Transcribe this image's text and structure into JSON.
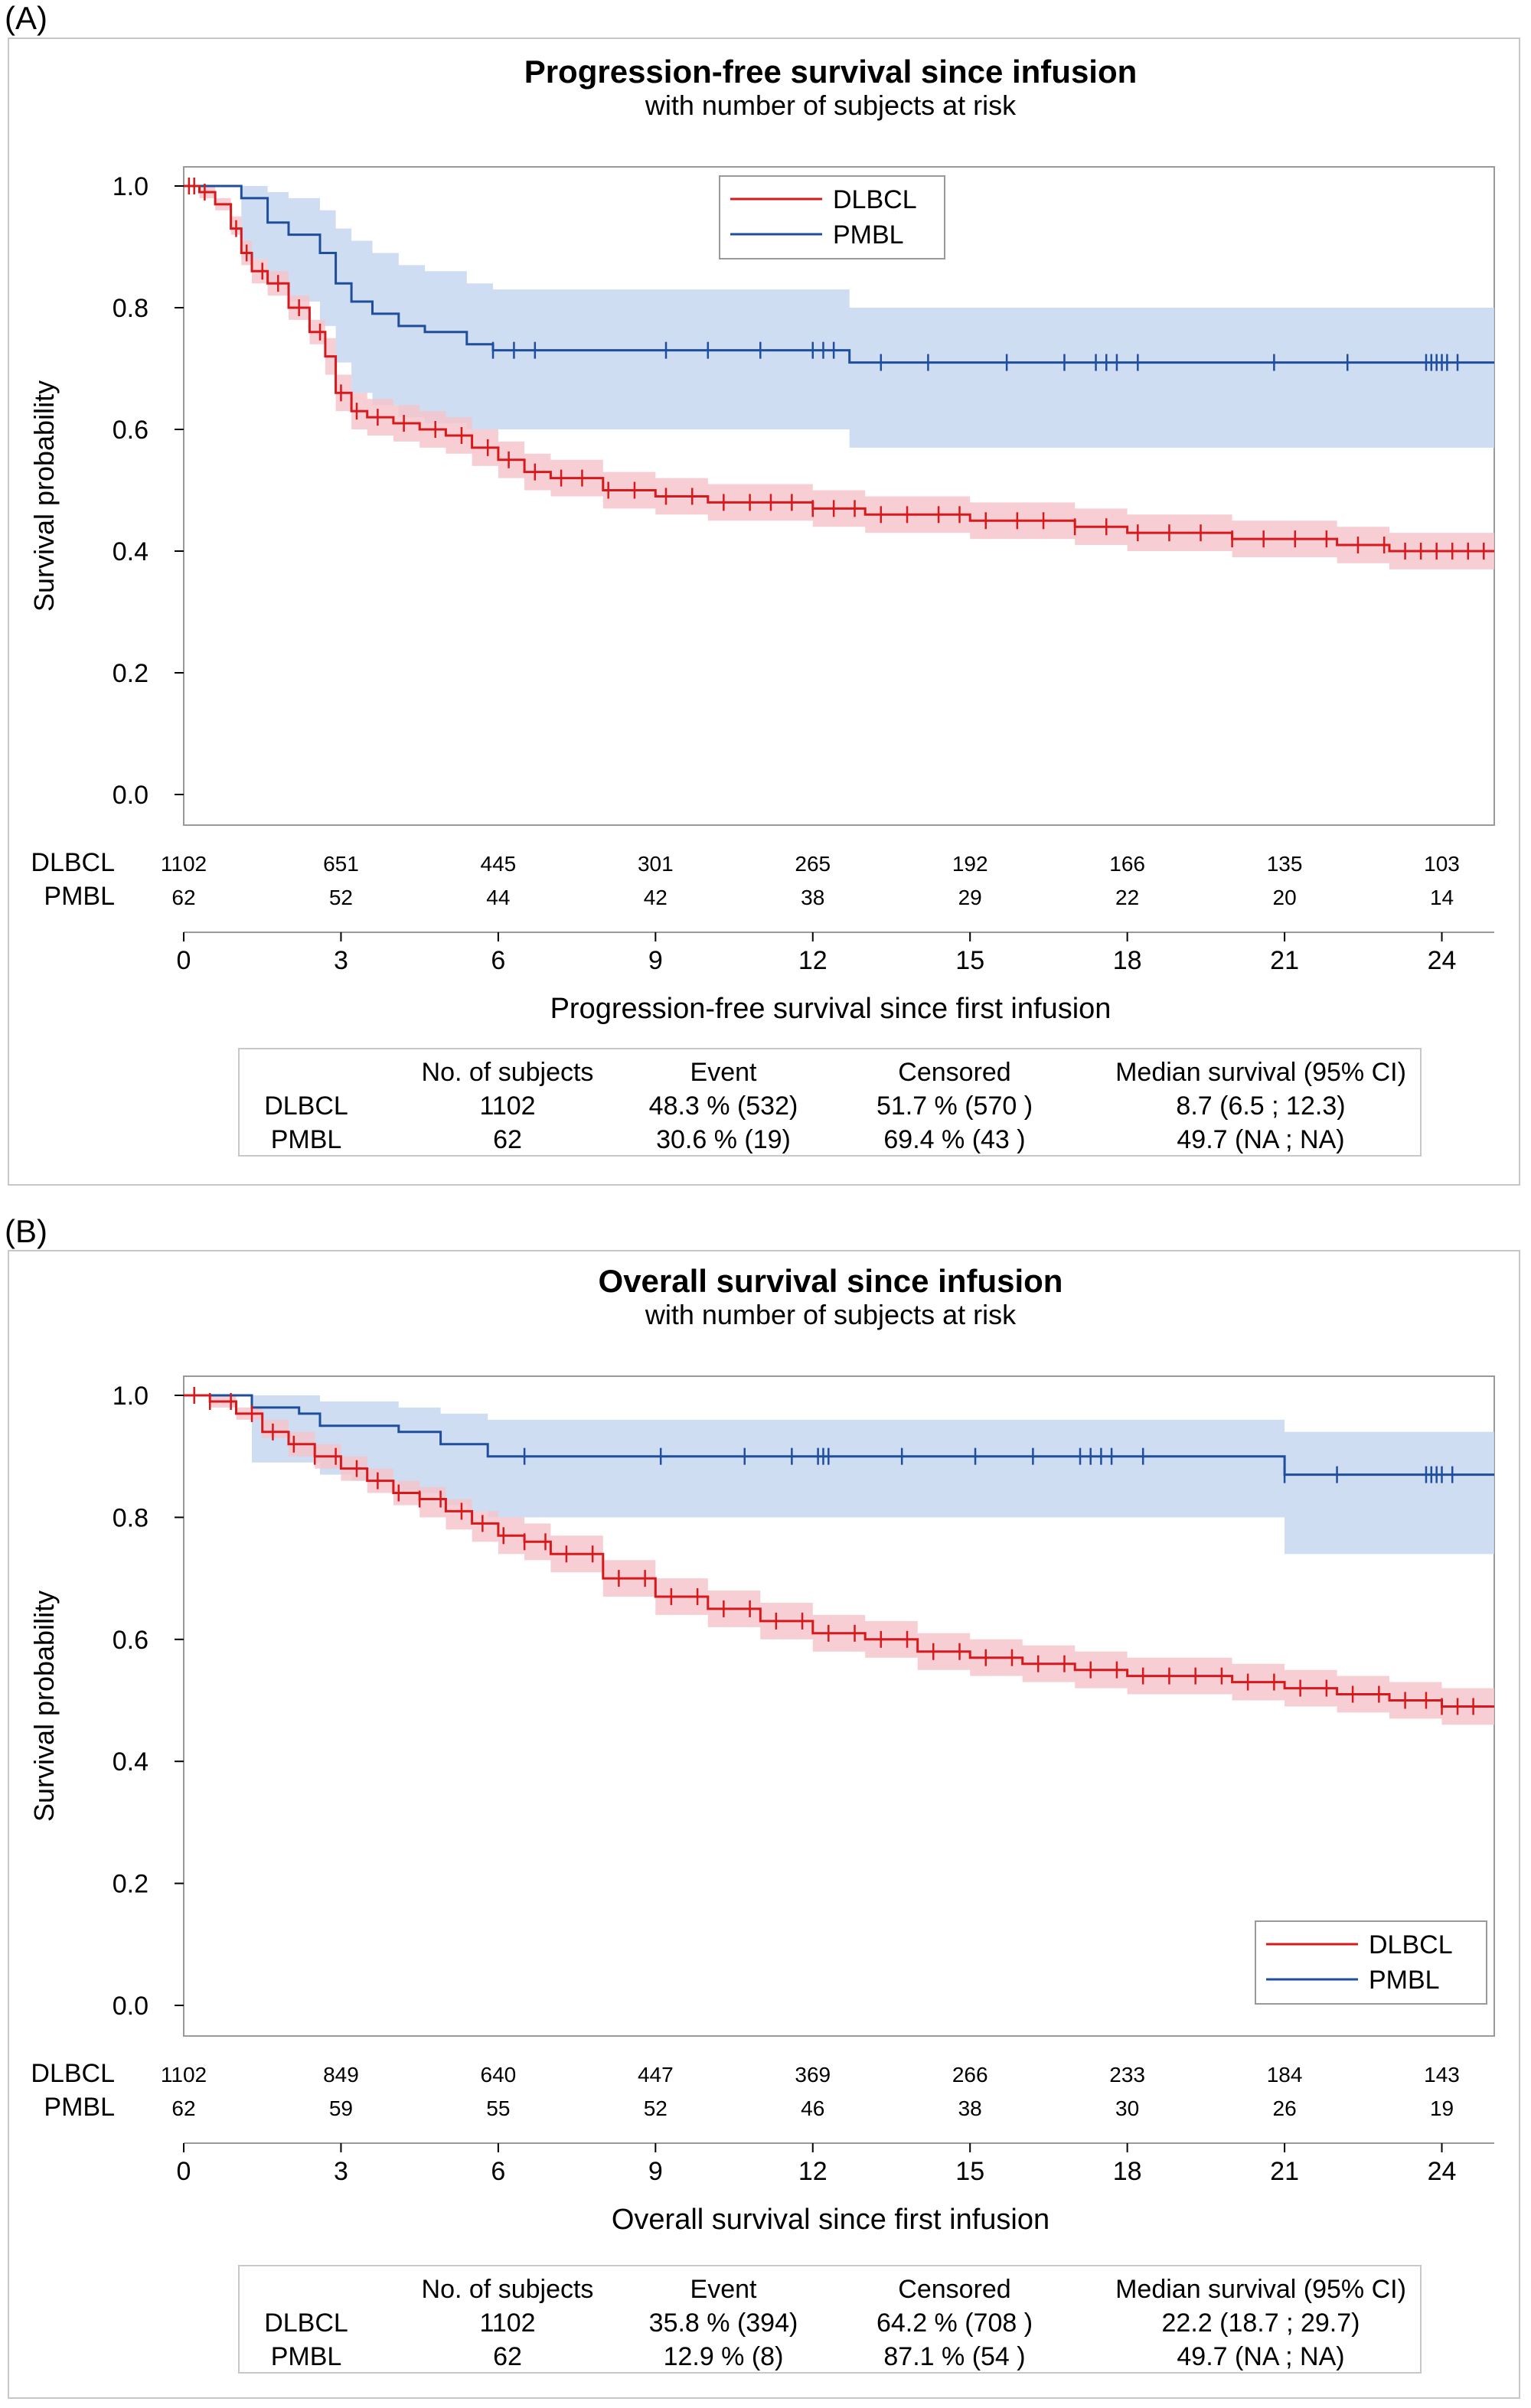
{
  "panels": [
    {
      "label": "(A)",
      "title": "Progression-free survival since infusion",
      "subtitle": "with number of subjects at risk",
      "ylabel": "Survival probability",
      "xlabel": "Progression-free survival since first infusion",
      "legend": [
        "DLBCL",
        "PMBL"
      ],
      "risk_table": {
        "rows": [
          {
            "name": "DLBCL",
            "values": [
              "1102",
              "651",
              "445",
              "301",
              "265",
              "192",
              "166",
              "135",
              "103"
            ]
          },
          {
            "name": "PMBL",
            "values": [
              "62",
              "52",
              "44",
              "42",
              "38",
              "29",
              "22",
              "20",
              "14"
            ]
          }
        ]
      },
      "summary": {
        "headers": [
          "No. of subjects",
          "Event",
          "Censored",
          "Median survival (95% CI)"
        ],
        "rows": [
          {
            "name": "DLBCL",
            "cells": [
              "1102",
              "48.3 % (532)",
              "51.7 % (570 )",
              "8.7 (6.5 ; 12.3)"
            ]
          },
          {
            "name": "PMBL",
            "cells": [
              "62",
              "30.6 % (19)",
              "69.4 % (43 )",
              "49.7 (NA ; NA)"
            ]
          }
        ]
      }
    },
    {
      "label": "(B)",
      "title": "Overall survival since infusion",
      "subtitle": "with number of subjects at risk",
      "ylabel": "Survival probability",
      "xlabel": "Overall survival since first infusion",
      "legend": [
        "DLBCL",
        "PMBL"
      ],
      "risk_table": {
        "rows": [
          {
            "name": "DLBCL",
            "values": [
              "1102",
              "849",
              "640",
              "447",
              "369",
              "266",
              "233",
              "184",
              "143"
            ]
          },
          {
            "name": "PMBL",
            "values": [
              "62",
              "59",
              "55",
              "52",
              "46",
              "38",
              "30",
              "26",
              "19"
            ]
          }
        ]
      },
      "summary": {
        "headers": [
          "No. of subjects",
          "Event",
          "Censored",
          "Median survival (95% CI)"
        ],
        "rows": [
          {
            "name": "DLBCL",
            "cells": [
              "1102",
              "35.8 % (394)",
              "64.2 % (708 )",
              "22.2 (18.7 ; 29.7)"
            ]
          },
          {
            "name": "PMBL",
            "cells": [
              "62",
              "12.9 % (8)",
              "87.1 % (54 )",
              "49.7 (NA ; NA)"
            ]
          }
        ]
      }
    }
  ],
  "colors": {
    "dlbcl_line": "#d7191c",
    "dlbcl_band": "#f4c6cc",
    "pmbl_line": "#1f4e9c",
    "pmbl_band": "#c5d7ef",
    "frame": "#9a9a9a"
  },
  "chart_data": [
    {
      "type": "line",
      "title": "Progression-free survival since infusion",
      "subtitle": "with number of subjects at risk",
      "xlabel": "Progression-free survival since first infusion",
      "ylabel": "Survival probability",
      "xlim": [
        0,
        25
      ],
      "ylim": [
        0,
        1
      ],
      "xticks": [
        0,
        3,
        6,
        9,
        12,
        15,
        18,
        21,
        24
      ],
      "yticks": [
        0.0,
        0.2,
        0.4,
        0.6,
        0.8,
        1.0
      ],
      "legend_position": "top-center",
      "series": [
        {
          "name": "DLBCL",
          "x": [
            0,
            0.3,
            0.6,
            0.9,
            1.1,
            1.3,
            1.6,
            2.0,
            2.4,
            2.7,
            2.9,
            3.2,
            3.5,
            4,
            4.5,
            5,
            5.5,
            6,
            6.5,
            7,
            8,
            9,
            10,
            11,
            12,
            13,
            14,
            15,
            16,
            17,
            18,
            19,
            20,
            21,
            22,
            23,
            24,
            25
          ],
          "y": [
            1.0,
            0.99,
            0.97,
            0.93,
            0.89,
            0.86,
            0.84,
            0.8,
            0.76,
            0.72,
            0.66,
            0.63,
            0.62,
            0.61,
            0.6,
            0.59,
            0.57,
            0.55,
            0.53,
            0.52,
            0.5,
            0.49,
            0.48,
            0.48,
            0.47,
            0.46,
            0.46,
            0.45,
            0.45,
            0.44,
            0.43,
            0.43,
            0.42,
            0.42,
            0.41,
            0.4,
            0.4,
            0.4
          ],
          "ci_lower": [
            1.0,
            0.98,
            0.96,
            0.92,
            0.87,
            0.84,
            0.82,
            0.78,
            0.74,
            0.69,
            0.63,
            0.6,
            0.59,
            0.58,
            0.57,
            0.56,
            0.54,
            0.52,
            0.5,
            0.49,
            0.47,
            0.46,
            0.45,
            0.45,
            0.44,
            0.43,
            0.43,
            0.42,
            0.42,
            0.41,
            0.4,
            0.4,
            0.39,
            0.39,
            0.38,
            0.37,
            0.37,
            0.37
          ],
          "ci_upper": [
            1.0,
            1.0,
            0.98,
            0.95,
            0.91,
            0.88,
            0.86,
            0.82,
            0.78,
            0.75,
            0.69,
            0.66,
            0.65,
            0.64,
            0.63,
            0.62,
            0.6,
            0.58,
            0.56,
            0.55,
            0.53,
            0.52,
            0.51,
            0.51,
            0.5,
            0.49,
            0.49,
            0.48,
            0.48,
            0.47,
            0.46,
            0.46,
            0.45,
            0.45,
            0.44,
            0.43,
            0.43,
            0.43
          ],
          "censor_x": [
            0.1,
            0.2,
            0.4,
            1.0,
            1.2,
            1.5,
            1.8,
            2.2,
            2.6,
            3.0,
            3.3,
            3.7,
            4.2,
            4.8,
            5.3,
            5.8,
            6.2,
            6.7,
            7.2,
            7.6,
            8.1,
            8.6,
            9.2,
            9.7,
            10.3,
            10.8,
            11.2,
            11.6,
            12.0,
            12.4,
            12.8,
            13.3,
            13.8,
            14.4,
            14.8,
            15.3,
            15.9,
            16.4,
            17.0,
            17.6,
            18.2,
            18.8,
            19.4,
            20.0,
            20.6,
            21.2,
            21.8,
            22.4,
            22.9,
            23.3,
            23.6,
            23.9,
            24.2,
            24.5,
            24.8
          ]
        },
        {
          "name": "PMBL",
          "x": [
            0,
            0.9,
            1.1,
            1.6,
            2.0,
            2.6,
            2.9,
            3.2,
            3.6,
            4.1,
            4.6,
            5.4,
            5.9,
            6.5,
            12.5,
            12.7,
            25
          ],
          "y": [
            1.0,
            1.0,
            0.98,
            0.94,
            0.92,
            0.89,
            0.84,
            0.81,
            0.79,
            0.77,
            0.76,
            0.74,
            0.73,
            0.73,
            0.73,
            0.71,
            0.71
          ],
          "ci_lower": [
            1.0,
            1.0,
            0.88,
            0.84,
            0.81,
            0.77,
            0.71,
            0.66,
            0.64,
            0.62,
            0.61,
            0.6,
            0.6,
            0.6,
            0.6,
            0.57,
            0.57
          ],
          "ci_upper": [
            1.0,
            1.0,
            1.0,
            0.99,
            0.98,
            0.96,
            0.93,
            0.91,
            0.89,
            0.87,
            0.86,
            0.84,
            0.83,
            0.83,
            0.83,
            0.8,
            0.8
          ],
          "censor_x": [
            5.9,
            6.3,
            6.7,
            9.2,
            10.0,
            11.0,
            12.0,
            12.2,
            12.4,
            13.3,
            14.2,
            15.7,
            16.8,
            17.4,
            17.6,
            17.8,
            18.2,
            20.8,
            22.2,
            23.7,
            23.8,
            23.9,
            24.0,
            24.1,
            24.3
          ]
        }
      ]
    },
    {
      "type": "line",
      "title": "Overall survival since infusion",
      "subtitle": "with number of subjects at risk",
      "xlabel": "Overall survival since first infusion",
      "ylabel": "Survival probability",
      "xlim": [
        0,
        25
      ],
      "ylim": [
        0,
        1
      ],
      "xticks": [
        0,
        3,
        6,
        9,
        12,
        15,
        18,
        21,
        24
      ],
      "yticks": [
        0.0,
        0.2,
        0.4,
        0.6,
        0.8,
        1.0
      ],
      "legend_position": "bottom-right",
      "series": [
        {
          "name": "DLBCL",
          "x": [
            0,
            0.5,
            1,
            1.5,
            2,
            2.5,
            3,
            3.5,
            4,
            4.5,
            5,
            5.5,
            6,
            6.5,
            7,
            8,
            9,
            10,
            11,
            12,
            13,
            14,
            15,
            16,
            17,
            18,
            19,
            20,
            21,
            22,
            23,
            24,
            25
          ],
          "y": [
            1.0,
            0.99,
            0.97,
            0.94,
            0.92,
            0.9,
            0.88,
            0.86,
            0.84,
            0.83,
            0.81,
            0.79,
            0.77,
            0.76,
            0.74,
            0.7,
            0.67,
            0.65,
            0.63,
            0.61,
            0.6,
            0.58,
            0.57,
            0.56,
            0.55,
            0.54,
            0.54,
            0.53,
            0.52,
            0.51,
            0.5,
            0.49,
            0.49
          ],
          "ci_lower": [
            1.0,
            0.98,
            0.96,
            0.93,
            0.9,
            0.88,
            0.86,
            0.84,
            0.82,
            0.8,
            0.78,
            0.76,
            0.74,
            0.73,
            0.71,
            0.67,
            0.64,
            0.62,
            0.6,
            0.58,
            0.57,
            0.55,
            0.54,
            0.53,
            0.52,
            0.51,
            0.51,
            0.5,
            0.49,
            0.48,
            0.47,
            0.46,
            0.46
          ],
          "ci_upper": [
            1.0,
            1.0,
            0.98,
            0.96,
            0.94,
            0.92,
            0.9,
            0.88,
            0.86,
            0.85,
            0.83,
            0.81,
            0.8,
            0.79,
            0.77,
            0.73,
            0.7,
            0.68,
            0.66,
            0.64,
            0.63,
            0.61,
            0.6,
            0.59,
            0.58,
            0.57,
            0.57,
            0.56,
            0.55,
            0.54,
            0.53,
            0.52,
            0.52
          ],
          "censor_x": [
            0.2,
            0.5,
            0.9,
            1.3,
            1.7,
            2.1,
            2.5,
            2.9,
            3.3,
            3.7,
            4.1,
            4.5,
            4.9,
            5.3,
            5.7,
            6.1,
            6.5,
            6.9,
            7.3,
            7.8,
            8.3,
            8.8,
            9.3,
            9.8,
            10.3,
            10.8,
            11.3,
            11.8,
            12.3,
            12.8,
            13.3,
            13.8,
            14.3,
            14.8,
            15.3,
            15.8,
            16.3,
            16.8,
            17.3,
            17.8,
            18.3,
            18.8,
            19.3,
            19.8,
            20.3,
            20.8,
            21.3,
            21.8,
            22.3,
            22.8,
            23.3,
            23.7,
            24.0,
            24.3,
            24.6
          ]
        },
        {
          "name": "PMBL",
          "x": [
            0,
            1.1,
            1.3,
            2.2,
            2.6,
            3.2,
            4.1,
            4.9,
            5.4,
            5.8,
            6.1,
            20.8,
            21.0,
            25
          ],
          "y": [
            1.0,
            1.0,
            0.98,
            0.97,
            0.95,
            0.95,
            0.94,
            0.92,
            0.92,
            0.9,
            0.9,
            0.9,
            0.87,
            0.87
          ],
          "ci_lower": [
            1.0,
            1.0,
            0.89,
            0.89,
            0.87,
            0.86,
            0.84,
            0.82,
            0.81,
            0.8,
            0.8,
            0.8,
            0.74,
            0.74
          ],
          "ci_upper": [
            1.0,
            1.0,
            1.0,
            1.0,
            0.99,
            0.99,
            0.98,
            0.97,
            0.97,
            0.96,
            0.96,
            0.96,
            0.94,
            0.94
          ],
          "censor_x": [
            6.5,
            9.1,
            10.7,
            11.6,
            12.1,
            12.2,
            12.3,
            13.7,
            15.1,
            16.2,
            17.1,
            17.3,
            17.5,
            17.7,
            18.3,
            21.0,
            22.0,
            23.7,
            23.8,
            23.9,
            24.0,
            24.2
          ]
        }
      ]
    }
  ]
}
